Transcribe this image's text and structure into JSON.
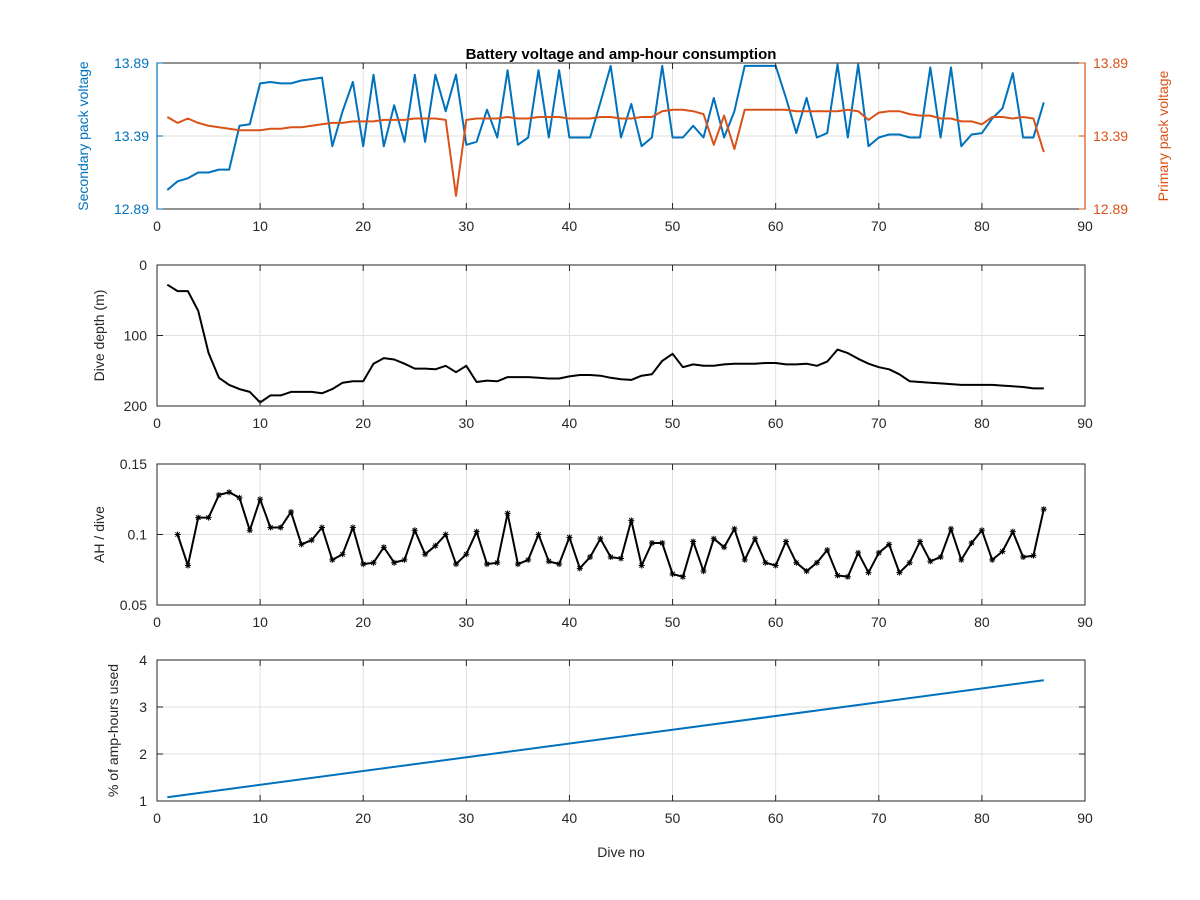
{
  "chart_data": [
    {
      "type": "line",
      "title": "Battery voltage and amp-hour consumption",
      "xlim": [
        0,
        90
      ],
      "xticks": [
        0,
        10,
        20,
        30,
        40,
        50,
        60,
        70,
        80,
        90
      ],
      "grid": true,
      "y_left": {
        "label": "Secondary pack voltage",
        "ylim": [
          12.89,
          13.89
        ],
        "ticks": [
          12.89,
          13.39,
          13.89
        ],
        "tick_labels": [
          "12.89",
          "13.39",
          "13.89"
        ],
        "color": "#0072BD"
      },
      "y_right": {
        "label": "Primary pack voltage",
        "ylim": [
          12.89,
          13.89
        ],
        "ticks": [
          12.89,
          13.39,
          13.89
        ],
        "tick_labels": [
          "12.89",
          "13.39",
          "13.89"
        ],
        "color": "#D95319"
      },
      "series": [
        {
          "axis": "left",
          "color": "#0072BD",
          "x": [
            1,
            2,
            3,
            4,
            5,
            6,
            7,
            8,
            9,
            10,
            11,
            12,
            13,
            14,
            15,
            16,
            17,
            18,
            19,
            20,
            21,
            22,
            23,
            24,
            25,
            26,
            27,
            28,
            29,
            30,
            31,
            32,
            33,
            34,
            35,
            36,
            37,
            38,
            39,
            40,
            41,
            42,
            43,
            44,
            45,
            46,
            47,
            48,
            49,
            50,
            51,
            52,
            53,
            54,
            55,
            56,
            57,
            58,
            59,
            60,
            61,
            62,
            63,
            64,
            65,
            66,
            67,
            68,
            69,
            70,
            71,
            72,
            73,
            74,
            75,
            76,
            77,
            78,
            79,
            80,
            81,
            82,
            83,
            84,
            85,
            86
          ],
          "y": [
            13.02,
            13.08,
            13.1,
            13.14,
            13.14,
            13.16,
            13.16,
            13.46,
            13.47,
            13.75,
            13.76,
            13.75,
            13.75,
            13.77,
            13.78,
            13.79,
            13.32,
            13.56,
            13.76,
            13.32,
            13.81,
            13.32,
            13.6,
            13.35,
            13.81,
            13.35,
            13.81,
            13.56,
            13.81,
            13.33,
            13.35,
            13.57,
            13.38,
            13.84,
            13.33,
            13.38,
            13.84,
            13.38,
            13.84,
            13.38,
            13.38,
            13.38,
            13.62,
            13.87,
            13.38,
            13.61,
            13.32,
            13.38,
            13.87,
            13.38,
            13.38,
            13.46,
            13.38,
            13.65,
            13.38,
            13.56,
            13.87,
            13.87,
            13.87,
            13.87,
            13.65,
            13.41,
            13.65,
            13.38,
            13.41,
            13.88,
            13.38,
            13.88,
            13.32,
            13.38,
            13.4,
            13.4,
            13.38,
            13.38,
            13.86,
            13.38,
            13.86,
            13.32,
            13.4,
            13.41,
            13.51,
            13.58,
            13.82,
            13.38,
            13.38,
            13.62
          ]
        },
        {
          "axis": "right",
          "color": "#D95319",
          "x": [
            1,
            2,
            3,
            4,
            5,
            6,
            7,
            8,
            9,
            10,
            11,
            12,
            13,
            14,
            15,
            16,
            17,
            18,
            19,
            20,
            21,
            22,
            23,
            24,
            25,
            26,
            27,
            28,
            29,
            30,
            31,
            32,
            33,
            34,
            35,
            36,
            37,
            38,
            39,
            40,
            41,
            42,
            43,
            44,
            45,
            46,
            47,
            48,
            49,
            50,
            51,
            52,
            53,
            54,
            55,
            56,
            57,
            58,
            59,
            60,
            61,
            62,
            63,
            64,
            65,
            66,
            67,
            68,
            69,
            70,
            71,
            72,
            73,
            74,
            75,
            76,
            77,
            78,
            79,
            80,
            81,
            82,
            83,
            84,
            85,
            86
          ],
          "y": [
            13.52,
            13.48,
            13.51,
            13.48,
            13.46,
            13.45,
            13.44,
            13.43,
            13.43,
            13.43,
            13.44,
            13.44,
            13.45,
            13.45,
            13.46,
            13.47,
            13.48,
            13.48,
            13.49,
            13.49,
            13.49,
            13.5,
            13.5,
            13.5,
            13.51,
            13.51,
            13.51,
            13.5,
            12.98,
            13.5,
            13.51,
            13.51,
            13.51,
            13.52,
            13.51,
            13.51,
            13.52,
            13.52,
            13.52,
            13.51,
            13.51,
            13.51,
            13.52,
            13.52,
            13.51,
            13.51,
            13.52,
            13.52,
            13.56,
            13.57,
            13.57,
            13.56,
            13.54,
            13.33,
            13.53,
            13.3,
            13.57,
            13.57,
            13.57,
            13.57,
            13.57,
            13.56,
            13.56,
            13.56,
            13.56,
            13.56,
            13.57,
            13.56,
            13.5,
            13.55,
            13.56,
            13.56,
            13.54,
            13.53,
            13.53,
            13.51,
            13.51,
            13.49,
            13.49,
            13.47,
            13.52,
            13.52,
            13.51,
            13.52,
            13.51,
            13.28
          ]
        }
      ]
    },
    {
      "type": "line",
      "title": "",
      "ylabel": "Dive depth (m)",
      "y_reversed": true,
      "xlim": [
        0,
        90
      ],
      "ylim": [
        0,
        200
      ],
      "xticks": [
        0,
        10,
        20,
        30,
        40,
        50,
        60,
        70,
        80,
        90
      ],
      "yticks": [
        0,
        100,
        200
      ],
      "grid": true,
      "series": [
        {
          "color": "#000000",
          "x": [
            1,
            2,
            3,
            4,
            5,
            6,
            7,
            8,
            9,
            10,
            11,
            12,
            13,
            14,
            15,
            16,
            17,
            18,
            19,
            20,
            21,
            22,
            23,
            24,
            25,
            26,
            27,
            28,
            29,
            30,
            31,
            32,
            33,
            34,
            35,
            36,
            37,
            38,
            39,
            40,
            41,
            42,
            43,
            44,
            45,
            46,
            47,
            48,
            49,
            50,
            51,
            52,
            53,
            54,
            55,
            56,
            57,
            58,
            59,
            60,
            61,
            62,
            63,
            64,
            65,
            66,
            67,
            68,
            69,
            70,
            71,
            72,
            73,
            74,
            75,
            76,
            77,
            78,
            79,
            80,
            81,
            82,
            83,
            84,
            85,
            86
          ],
          "y": [
            28,
            37,
            37,
            65,
            125,
            160,
            170,
            176,
            180,
            195,
            185,
            185,
            180,
            180,
            180,
            182,
            176,
            167,
            165,
            165,
            140,
            132,
            134,
            140,
            147,
            147,
            148,
            143,
            152,
            143,
            166,
            164,
            165,
            159,
            159,
            159,
            160,
            161,
            161,
            158,
            156,
            156,
            157,
            160,
            162,
            163,
            157,
            155,
            136,
            126,
            145,
            141,
            143,
            143,
            141,
            140,
            140,
            140,
            139,
            139,
            141,
            141,
            140,
            143,
            137,
            120,
            125,
            133,
            140,
            145,
            148,
            155,
            165,
            166,
            167,
            168,
            169,
            170,
            170,
            170,
            170,
            171,
            172,
            173,
            175,
            175
          ]
        }
      ]
    },
    {
      "type": "line",
      "title": "",
      "ylabel": "AH / dive",
      "xlim": [
        0,
        90
      ],
      "ylim": [
        0.05,
        0.15
      ],
      "xticks": [
        0,
        10,
        20,
        30,
        40,
        50,
        60,
        70,
        80,
        90
      ],
      "yticks": [
        0.05,
        0.1,
        0.15
      ],
      "ytick_labels": [
        "0.05",
        "0.1",
        "0.15"
      ],
      "grid": true,
      "marker": "*",
      "series": [
        {
          "color": "#000000",
          "x": [
            2,
            3,
            4,
            5,
            6,
            7,
            8,
            9,
            10,
            11,
            12,
            13,
            14,
            15,
            16,
            17,
            18,
            19,
            20,
            21,
            22,
            23,
            24,
            25,
            26,
            27,
            28,
            29,
            30,
            31,
            32,
            33,
            34,
            35,
            36,
            37,
            38,
            39,
            40,
            41,
            42,
            43,
            44,
            45,
            46,
            47,
            48,
            49,
            50,
            51,
            52,
            53,
            54,
            55,
            56,
            57,
            58,
            59,
            60,
            61,
            62,
            63,
            64,
            65,
            66,
            67,
            68,
            69,
            70,
            71,
            72,
            73,
            74,
            75,
            76,
            77,
            78,
            79,
            80,
            81,
            82,
            83,
            84,
            85,
            86
          ],
          "y": [
            0.1,
            0.078,
            0.112,
            0.112,
            0.128,
            0.13,
            0.126,
            0.103,
            0.125,
            0.105,
            0.105,
            0.116,
            0.093,
            0.096,
            0.105,
            0.082,
            0.086,
            0.105,
            0.079,
            0.08,
            0.091,
            0.08,
            0.082,
            0.103,
            0.086,
            0.092,
            0.1,
            0.079,
            0.086,
            0.102,
            0.079,
            0.08,
            0.115,
            0.079,
            0.082,
            0.1,
            0.081,
            0.079,
            0.098,
            0.076,
            0.084,
            0.097,
            0.084,
            0.083,
            0.11,
            0.078,
            0.094,
            0.094,
            0.072,
            0.07,
            0.095,
            0.074,
            0.097,
            0.091,
            0.104,
            0.082,
            0.097,
            0.08,
            0.078,
            0.095,
            0.08,
            0.074,
            0.08,
            0.089,
            0.071,
            0.07,
            0.087,
            0.073,
            0.087,
            0.093,
            0.073,
            0.08,
            0.095,
            0.081,
            0.084,
            0.104,
            0.082,
            0.094,
            0.103,
            0.082,
            0.088,
            0.102,
            0.084,
            0.085,
            0.118
          ]
        }
      ]
    },
    {
      "type": "line",
      "title": "",
      "xlabel": "Dive no",
      "ylabel": "% of amp-hours used",
      "xlim": [
        0,
        90
      ],
      "ylim": [
        1,
        4
      ],
      "xticks": [
        0,
        10,
        20,
        30,
        40,
        50,
        60,
        70,
        80,
        90
      ],
      "yticks": [
        1,
        2,
        3,
        4
      ],
      "grid": true,
      "series": [
        {
          "color": "#0072BD",
          "x": [
            1,
            86
          ],
          "y": [
            1.08,
            3.57
          ]
        }
      ]
    }
  ]
}
